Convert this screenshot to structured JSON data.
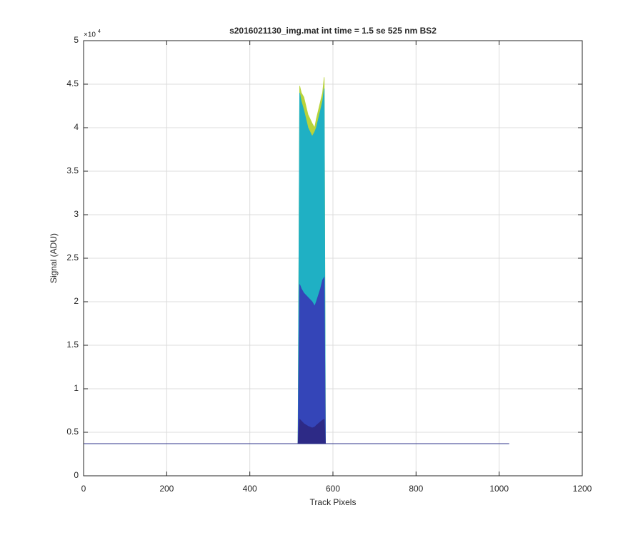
{
  "chart_data": {
    "type": "area",
    "title": "s2016021130_img.mat int time = 1.5 se  525 nm BS2",
    "x_label": "Track Pixels",
    "y_label": "Signal (ADU)",
    "y_scale_label": "×10",
    "y_scale_exponent": "4",
    "x": [
      1,
      100,
      200,
      300,
      400,
      500,
      516,
      520,
      524,
      530,
      540,
      550,
      556,
      560,
      570,
      575,
      579,
      582,
      586,
      600,
      700,
      800,
      900,
      1024
    ],
    "series": [
      {
        "color": "#b8d33a",
        "values": [
          3700,
          3700,
          3700,
          3700,
          3700,
          3700,
          3700,
          44800,
          44000,
          43500,
          41500,
          40500,
          40000,
          41000,
          43000,
          44000,
          45800,
          3700,
          3700,
          3700,
          3700,
          3700,
          3700,
          3700
        ]
      },
      {
        "color": "#1fb0c4",
        "values": [
          3700,
          3700,
          3700,
          3700,
          3700,
          3700,
          3700,
          44000,
          43000,
          42000,
          40000,
          39000,
          39500,
          40000,
          42000,
          43000,
          44500,
          3700,
          3700,
          3700,
          3700,
          3700,
          3700,
          3700
        ]
      },
      {
        "color": "#3445b8",
        "values": [
          3700,
          3700,
          3700,
          3700,
          3700,
          3700,
          3700,
          22000,
          21500,
          21000,
          20500,
          20000,
          19500,
          20000,
          21500,
          22500,
          22800,
          3700,
          3700,
          3700,
          3700,
          3700,
          3700,
          3700
        ]
      },
      {
        "color": "#2d2a86",
        "values": [
          3700,
          3700,
          3700,
          3700,
          3700,
          3700,
          3700,
          6500,
          6300,
          6000,
          5700,
          5500,
          5600,
          5800,
          6200,
          6400,
          6500,
          3700,
          3700,
          3700,
          3700,
          3700,
          3700,
          3700
        ]
      }
    ],
    "xlim": [
      0,
      1200
    ],
    "xticks": [
      0,
      200,
      400,
      600,
      800,
      1000,
      1200
    ],
    "ylim": [
      0,
      50000
    ],
    "yticks": [
      0,
      {
        "value": 5000,
        "label": "0.5"
      },
      {
        "value": 10000,
        "label": "1"
      },
      {
        "value": 15000,
        "label": "1.5"
      },
      {
        "value": 20000,
        "label": "2"
      },
      {
        "value": 25000,
        "label": "2.5"
      },
      {
        "value": 30000,
        "label": "3"
      },
      {
        "value": 35000,
        "label": "3.5"
      },
      {
        "value": 40000,
        "label": "4"
      },
      {
        "value": 45000,
        "label": "4.5"
      },
      {
        "value": 50000,
        "label": "5"
      }
    ],
    "grid": true
  }
}
